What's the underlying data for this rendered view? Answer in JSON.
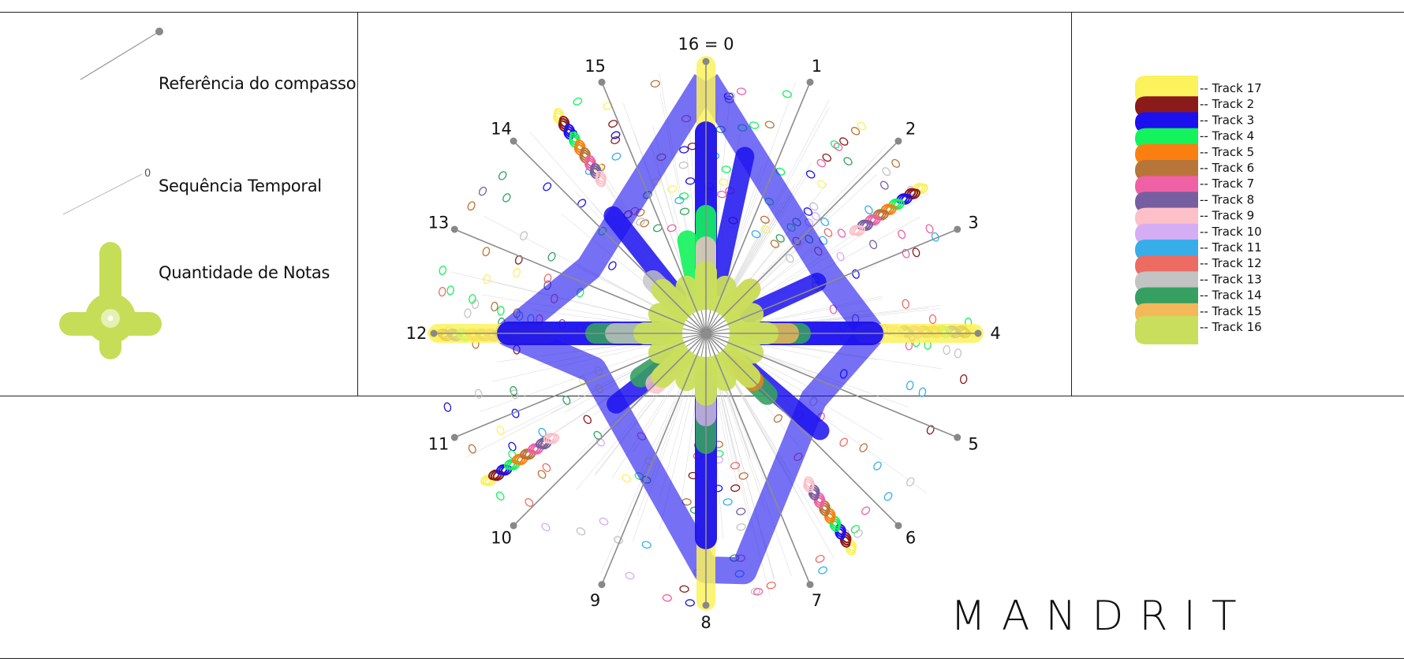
{
  "left_panel": {
    "items": [
      {
        "label": "Referência do compasso"
      },
      {
        "label": "Sequência Temporal",
        "marker": "0"
      },
      {
        "label": "Quantidade de Notas"
      }
    ],
    "glyph_color": "#c6dd58"
  },
  "right_panel": {
    "tracks": [
      {
        "label": "-- Track 17",
        "color": "#fbf25c"
      },
      {
        "label": "-- Track 2",
        "color": "#8b1a1a"
      },
      {
        "label": "-- Track 3",
        "color": "#1b10ee"
      },
      {
        "label": "-- Track 4",
        "color": "#13f35c"
      },
      {
        "label": "-- Track 5",
        "color": "#fb7f10"
      },
      {
        "label": "-- Track 6",
        "color": "#b77539"
      },
      {
        "label": "-- Track 7",
        "color": "#ef61a4"
      },
      {
        "label": "-- Track 8",
        "color": "#765fa0"
      },
      {
        "label": "-- Track 9",
        "color": "#fdc0c8"
      },
      {
        "label": "-- Track 10",
        "color": "#d5adf4"
      },
      {
        "label": "-- Track 11",
        "color": "#37aeea"
      },
      {
        "label": "-- Track 12",
        "color": "#ec6b63"
      },
      {
        "label": "-- Track 13",
        "color": "#c3c3c3"
      },
      {
        "label": "-- Track 14",
        "color": "#35a062"
      },
      {
        "label": "-- Track 15",
        "color": "#f4b85a"
      },
      {
        "label": "-- Track 16",
        "color": "#c9de5c"
      }
    ]
  },
  "radial": {
    "beat_labels": [
      "16 = 0",
      "1",
      "2",
      "3",
      "4",
      "5",
      "6",
      "7",
      "8",
      "9",
      "10",
      "11",
      "12",
      "13",
      "14",
      "15"
    ],
    "axis_color": "#8c8c8c"
  },
  "brand": "MANDRIT"
}
